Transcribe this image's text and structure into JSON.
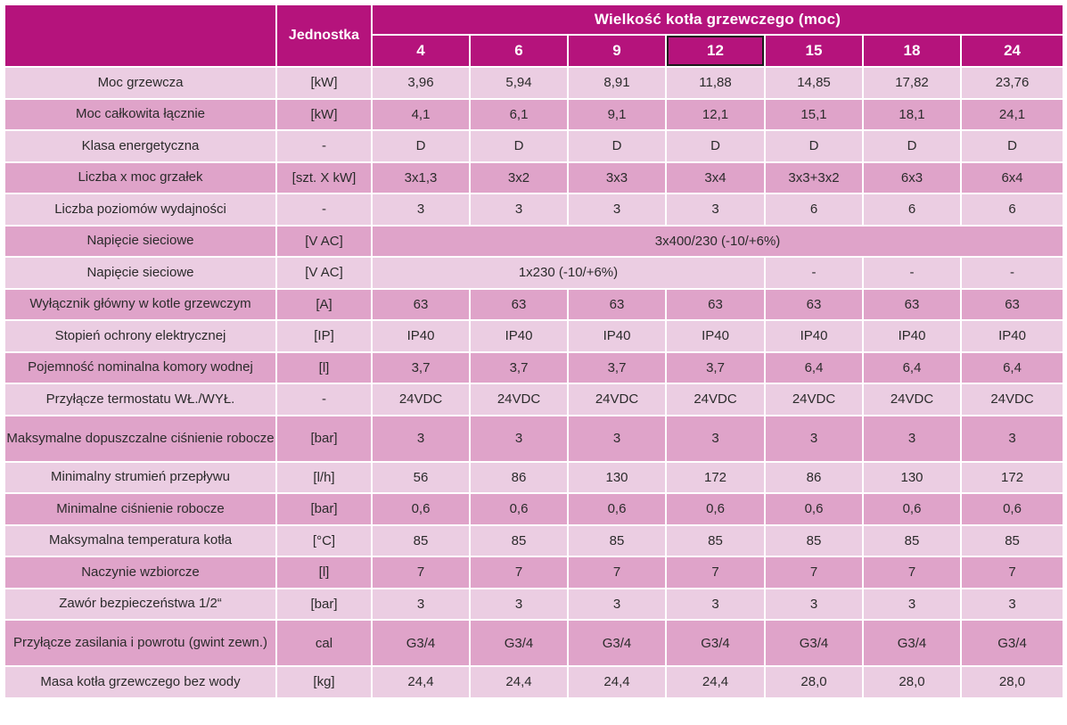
{
  "header": {
    "unit_label": "Jednostka",
    "group_label": "Wielkość kotła grzewczego (moc)",
    "sizes": [
      "4",
      "6",
      "9",
      "12",
      "15",
      "18",
      "24"
    ],
    "selected_size": "12"
  },
  "rows": [
    {
      "name": "Moc grzewcza",
      "unit": "[kW]",
      "values": [
        "3,96",
        "5,94",
        "8,91",
        "11,88",
        "14,85",
        "17,82",
        "23,76"
      ]
    },
    {
      "name": "Moc całkowita łącznie",
      "unit": "[kW]",
      "values": [
        "4,1",
        "6,1",
        "9,1",
        "12,1",
        "15,1",
        "18,1",
        "24,1"
      ]
    },
    {
      "name": "Klasa energetyczna",
      "unit": "-",
      "values": [
        "D",
        "D",
        "D",
        "D",
        "D",
        "D",
        "D"
      ]
    },
    {
      "name": "Liczba x moc grzałek",
      "unit": "[szt. X kW]",
      "values": [
        "3x1,3",
        "3x2",
        "3x3",
        "3x4",
        "3x3+3x2",
        "6x3",
        "6x4"
      ]
    },
    {
      "name": "Liczba poziomów wydajności",
      "unit": "-",
      "values": [
        "3",
        "3",
        "3",
        "3",
        "6",
        "6",
        "6"
      ]
    },
    {
      "name": "Napięcie sieciowe",
      "unit": "[V AC]",
      "merged_all": "3x400/230 (-10/+6%)"
    },
    {
      "name": "Napięcie sieciowe",
      "unit": "[V AC]",
      "merged_first4": "1x230 (-10/+6%)",
      "values_rest": [
        "-",
        "-",
        "-"
      ]
    },
    {
      "name": "Wyłącznik główny w kotle grzewczym",
      "unit": "[A]",
      "values": [
        "63",
        "63",
        "63",
        "63",
        "63",
        "63",
        "63"
      ]
    },
    {
      "name": "Stopień ochrony elektrycznej",
      "unit": "[IP]",
      "values": [
        "IP40",
        "IP40",
        "IP40",
        "IP40",
        "IP40",
        "IP40",
        "IP40"
      ]
    },
    {
      "name": "Pojemność nominalna komory wodnej",
      "unit": "[l]",
      "values": [
        "3,7",
        "3,7",
        "3,7",
        "3,7",
        "6,4",
        "6,4",
        "6,4"
      ]
    },
    {
      "name": "Przyłącze termostatu WŁ./WYŁ.",
      "unit": "-",
      "values": [
        "24VDC",
        "24VDC",
        "24VDC",
        "24VDC",
        "24VDC",
        "24VDC",
        "24VDC"
      ]
    },
    {
      "name": "Maksymalne dopuszczalne ciśnienie robocze",
      "unit": "[bar]",
      "values": [
        "3",
        "3",
        "3",
        "3",
        "3",
        "3",
        "3"
      ]
    },
    {
      "name": "Minimalny strumień przepływu",
      "unit": "[l/h]",
      "values": [
        "56",
        "86",
        "130",
        "172",
        "86",
        "130",
        "172"
      ]
    },
    {
      "name": "Minimalne ciśnienie robocze",
      "unit": "[bar]",
      "values": [
        "0,6",
        "0,6",
        "0,6",
        "0,6",
        "0,6",
        "0,6",
        "0,6"
      ]
    },
    {
      "name": "Maksymalna temperatura kotła",
      "unit": "[°C]",
      "values": [
        "85",
        "85",
        "85",
        "85",
        "85",
        "85",
        "85"
      ]
    },
    {
      "name": "Naczynie wzbiorcze",
      "unit": "[l]",
      "values": [
        "7",
        "7",
        "7",
        "7",
        "7",
        "7",
        "7"
      ]
    },
    {
      "name": "Zawór bezpieczeństwa 1/2“",
      "unit": "[bar]",
      "values": [
        "3",
        "3",
        "3",
        "3",
        "3",
        "3",
        "3"
      ]
    },
    {
      "name": "Przyłącze zasilania i powrotu (gwint zewn.)",
      "unit": "cal",
      "values": [
        "G3/4",
        "G3/4",
        "G3/4",
        "G3/4",
        "G3/4",
        "G3/4",
        "G3/4"
      ]
    },
    {
      "name": "Masa kotła grzewczego bez wody",
      "unit": "[kg]",
      "values": [
        "24,4",
        "24,4",
        "24,4",
        "24,4",
        "28,0",
        "28,0",
        "28,0"
      ]
    }
  ],
  "colors": {
    "header": "#b5137c",
    "row_light": "#ebcde2",
    "row_dark": "#dfa3c9"
  }
}
